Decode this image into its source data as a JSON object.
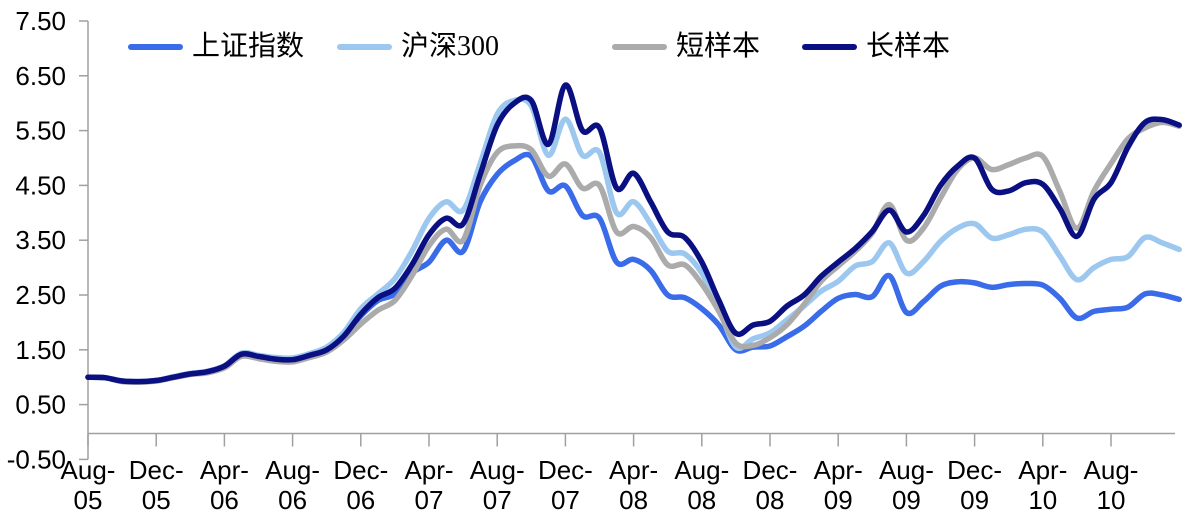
{
  "chart_data": {
    "type": "line",
    "title": "",
    "xlabel": "",
    "ylabel": "",
    "ylim": [
      -0.5,
      7.5
    ],
    "grid": false,
    "legend_position": "top",
    "axis_color": "#A0A0A0",
    "text_color": "#000000",
    "y_ticks": [
      7.5,
      6.5,
      5.5,
      4.5,
      3.5,
      2.5,
      1.5,
      0.5,
      -0.5
    ],
    "y_tick_labels": [
      "7.50",
      "6.50",
      "5.50",
      "4.50",
      "3.50",
      "2.50",
      "1.50",
      "0.50",
      "-0.50"
    ],
    "x_tick_labels": [
      [
        "Aug-",
        "05"
      ],
      [
        "Dec-",
        "05"
      ],
      [
        "Apr-",
        "06"
      ],
      [
        "Aug-",
        "06"
      ],
      [
        "Dec-",
        "06"
      ],
      [
        "Apr-",
        "07"
      ],
      [
        "Aug-",
        "07"
      ],
      [
        "Dec-",
        "07"
      ],
      [
        "Apr-",
        "08"
      ],
      [
        "Aug-",
        "08"
      ],
      [
        "Dec-",
        "08"
      ],
      [
        "Apr-",
        "09"
      ],
      [
        "Aug-",
        "09"
      ],
      [
        "Dec-",
        "09"
      ],
      [
        "Apr-",
        "10"
      ],
      [
        "Aug-",
        "10"
      ]
    ],
    "x": [
      "Aug-05",
      "Sep-05",
      "Oct-05",
      "Nov-05",
      "Dec-05",
      "Jan-06",
      "Feb-06",
      "Mar-06",
      "Apr-06",
      "May-06",
      "Jun-06",
      "Jul-06",
      "Aug-06",
      "Sep-06",
      "Oct-06",
      "Nov-06",
      "Dec-06",
      "Jan-07",
      "Feb-07",
      "Mar-07",
      "Apr-07",
      "May-07",
      "Jun-07",
      "Jul-07",
      "Aug-07",
      "Sep-07",
      "Oct-07",
      "Nov-07",
      "Dec-07",
      "Jan-08",
      "Feb-08",
      "Mar-08",
      "Apr-08",
      "May-08",
      "Jun-08",
      "Jul-08",
      "Aug-08",
      "Sep-08",
      "Oct-08",
      "Nov-08",
      "Dec-08",
      "Jan-09",
      "Feb-09",
      "Mar-09",
      "Apr-09",
      "May-09",
      "Jun-09",
      "Jul-09",
      "Aug-09",
      "Sep-09",
      "Oct-09",
      "Nov-09",
      "Dec-09",
      "Jan-10",
      "Feb-10",
      "Mar-10",
      "Apr-10",
      "May-10",
      "Jun-10",
      "Jul-10",
      "Aug-10",
      "Sep-10",
      "Oct-10",
      "Nov-10",
      "Dec-10"
    ],
    "series": [
      {
        "name": "上证指数",
        "key": "sse-composite",
        "color": "#3A6BE8",
        "values": [
          1.0,
          0.99,
          0.93,
          0.92,
          0.94,
          1.0,
          1.06,
          1.1,
          1.2,
          1.41,
          1.38,
          1.33,
          1.32,
          1.4,
          1.5,
          1.75,
          2.12,
          2.4,
          2.52,
          2.9,
          3.1,
          3.5,
          3.3,
          4.2,
          4.7,
          4.95,
          5.03,
          4.4,
          4.49,
          3.95,
          3.9,
          3.1,
          3.15,
          2.95,
          2.5,
          2.45,
          2.25,
          1.95,
          1.5,
          1.55,
          1.57,
          1.74,
          1.93,
          2.2,
          2.44,
          2.51,
          2.47,
          2.85,
          2.18,
          2.38,
          2.66,
          2.74,
          2.72,
          2.64,
          2.69,
          2.71,
          2.68,
          2.44,
          2.08,
          2.2,
          2.24,
          2.28,
          2.52,
          2.5,
          2.42
        ]
      },
      {
        "name": "沪深300",
        "key": "csi300",
        "color": "#9CC8F0",
        "values": [
          1.0,
          0.99,
          0.93,
          0.92,
          0.94,
          1.01,
          1.07,
          1.11,
          1.21,
          1.44,
          1.4,
          1.36,
          1.35,
          1.43,
          1.55,
          1.82,
          2.25,
          2.52,
          2.8,
          3.3,
          3.9,
          4.2,
          4.05,
          4.9,
          5.8,
          6.05,
          5.95,
          5.05,
          5.71,
          5.05,
          5.1,
          4.0,
          4.2,
          3.8,
          3.3,
          3.25,
          2.9,
          2.25,
          1.55,
          1.7,
          1.81,
          2.05,
          2.3,
          2.57,
          2.75,
          3.03,
          3.11,
          3.45,
          2.9,
          3.11,
          3.48,
          3.72,
          3.8,
          3.54,
          3.6,
          3.7,
          3.65,
          3.21,
          2.78,
          3.0,
          3.15,
          3.2,
          3.55,
          3.45,
          3.33
        ]
      },
      {
        "name": "短样本",
        "key": "short-sample",
        "color": "#ABABAB",
        "values": [
          1.0,
          0.99,
          0.92,
          0.91,
          0.93,
          0.99,
          1.05,
          1.08,
          1.17,
          1.38,
          1.34,
          1.29,
          1.28,
          1.36,
          1.46,
          1.68,
          1.97,
          2.22,
          2.4,
          2.85,
          3.4,
          3.7,
          3.5,
          4.5,
          5.1,
          5.22,
          5.15,
          4.67,
          4.89,
          4.45,
          4.5,
          3.65,
          3.75,
          3.55,
          3.05,
          3.05,
          2.7,
          2.2,
          1.62,
          1.58,
          1.72,
          1.96,
          2.33,
          2.75,
          3.03,
          3.3,
          3.63,
          4.15,
          3.5,
          3.72,
          4.27,
          4.79,
          5.0,
          4.79,
          4.88,
          5.0,
          5.03,
          4.39,
          3.72,
          4.4,
          4.9,
          5.35,
          5.55,
          5.65,
          5.58
        ]
      },
      {
        "name": "长样本",
        "key": "long-sample",
        "color": "#0A0F82",
        "values": [
          1.0,
          0.99,
          0.93,
          0.92,
          0.94,
          1.0,
          1.06,
          1.1,
          1.2,
          1.42,
          1.38,
          1.33,
          1.32,
          1.4,
          1.5,
          1.75,
          2.15,
          2.45,
          2.62,
          3.05,
          3.6,
          3.9,
          3.8,
          4.7,
          5.6,
          6.0,
          6.05,
          5.25,
          6.33,
          5.5,
          5.55,
          4.45,
          4.72,
          4.2,
          3.65,
          3.55,
          3.1,
          2.4,
          1.8,
          1.95,
          2.02,
          2.3,
          2.5,
          2.84,
          3.1,
          3.35,
          3.66,
          4.05,
          3.65,
          3.95,
          4.5,
          4.85,
          5.0,
          4.43,
          4.4,
          4.55,
          4.52,
          4.08,
          3.57,
          4.25,
          4.55,
          5.2,
          5.65,
          5.7,
          5.6
        ]
      }
    ]
  },
  "legend": {
    "items_x": [
      128,
      337,
      612,
      802
    ]
  }
}
